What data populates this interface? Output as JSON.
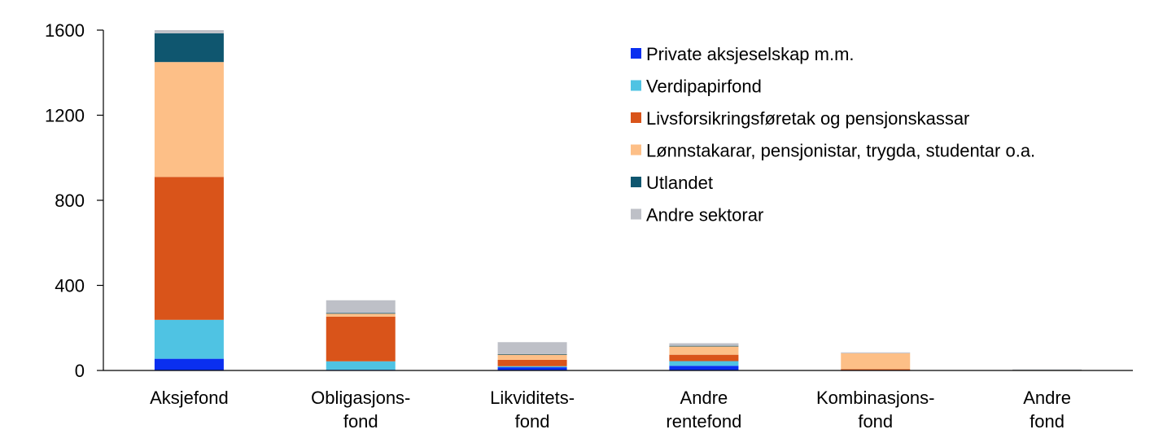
{
  "chart_data": {
    "type": "bar",
    "stacked": true,
    "title": "",
    "xlabel": "",
    "ylabel": "",
    "ylim": [
      0,
      1600
    ],
    "yticks": [
      "0",
      "400",
      "800",
      "1200",
      "1600"
    ],
    "grid": false,
    "legend_position": "top-right",
    "categories": [
      [
        "Aksjefond"
      ],
      [
        "Obligasjons-",
        "fond"
      ],
      [
        "Likviditets-",
        "fond"
      ],
      [
        "Andre",
        "rentefond"
      ],
      [
        "Kombinasjons-",
        "fond"
      ],
      [
        "Andre",
        "fond"
      ]
    ],
    "series": [
      {
        "name": "Private aksjeselskap m.m.",
        "color": "#0a2ff0",
        "values": [
          55,
          3,
          15,
          22,
          1,
          0
        ]
      },
      {
        "name": "Verdipapirfond",
        "color": "#4fc3e3",
        "values": [
          183,
          40,
          5,
          22,
          1,
          0
        ]
      },
      {
        "name": "Livsforsikringsføretak og pensjonskassar",
        "color": "#d9541a",
        "values": [
          672,
          210,
          30,
          30,
          4,
          0
        ]
      },
      {
        "name": "Lønnstakarar, pensjonistar, trygda, studentar o.a.",
        "color": "#fdbf87",
        "values": [
          540,
          15,
          25,
          40,
          75,
          1
        ]
      },
      {
        "name": "Utlandet",
        "color": "#0f566f",
        "values": [
          135,
          2,
          2,
          2,
          0,
          1
        ]
      },
      {
        "name": "Andre sektorar",
        "color": "#bec0c7",
        "values": [
          15,
          60,
          56,
          12,
          4,
          3
        ]
      }
    ]
  }
}
